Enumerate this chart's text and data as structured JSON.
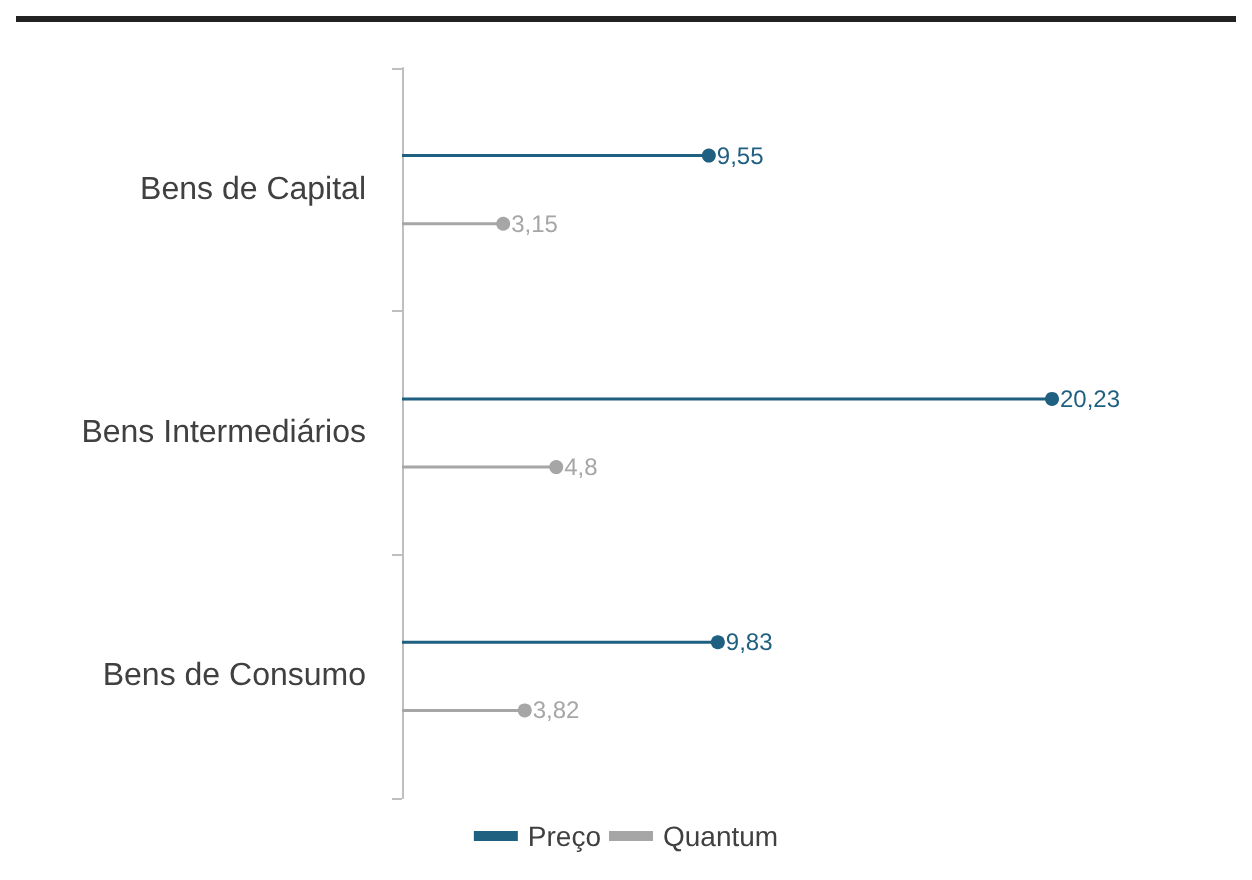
{
  "chart_data": {
    "type": "lollipop",
    "orientation": "horizontal",
    "categories": [
      "Bens de Capital",
      "Bens Intermediários",
      "Bens de Consumo"
    ],
    "series": [
      {
        "name": "Preço",
        "color": "#1f5f80",
        "values": [
          9.55,
          20.23,
          9.83
        ],
        "value_labels": [
          "9,55",
          "20,23",
          "9,83"
        ]
      },
      {
        "name": "Quantum",
        "color": "#a6a6a6",
        "values": [
          3.15,
          4.8,
          3.82
        ],
        "value_labels": [
          "3,15",
          "4,8",
          "3,82"
        ]
      }
    ],
    "legend": "bottom",
    "grid": false,
    "marker": "circle"
  }
}
